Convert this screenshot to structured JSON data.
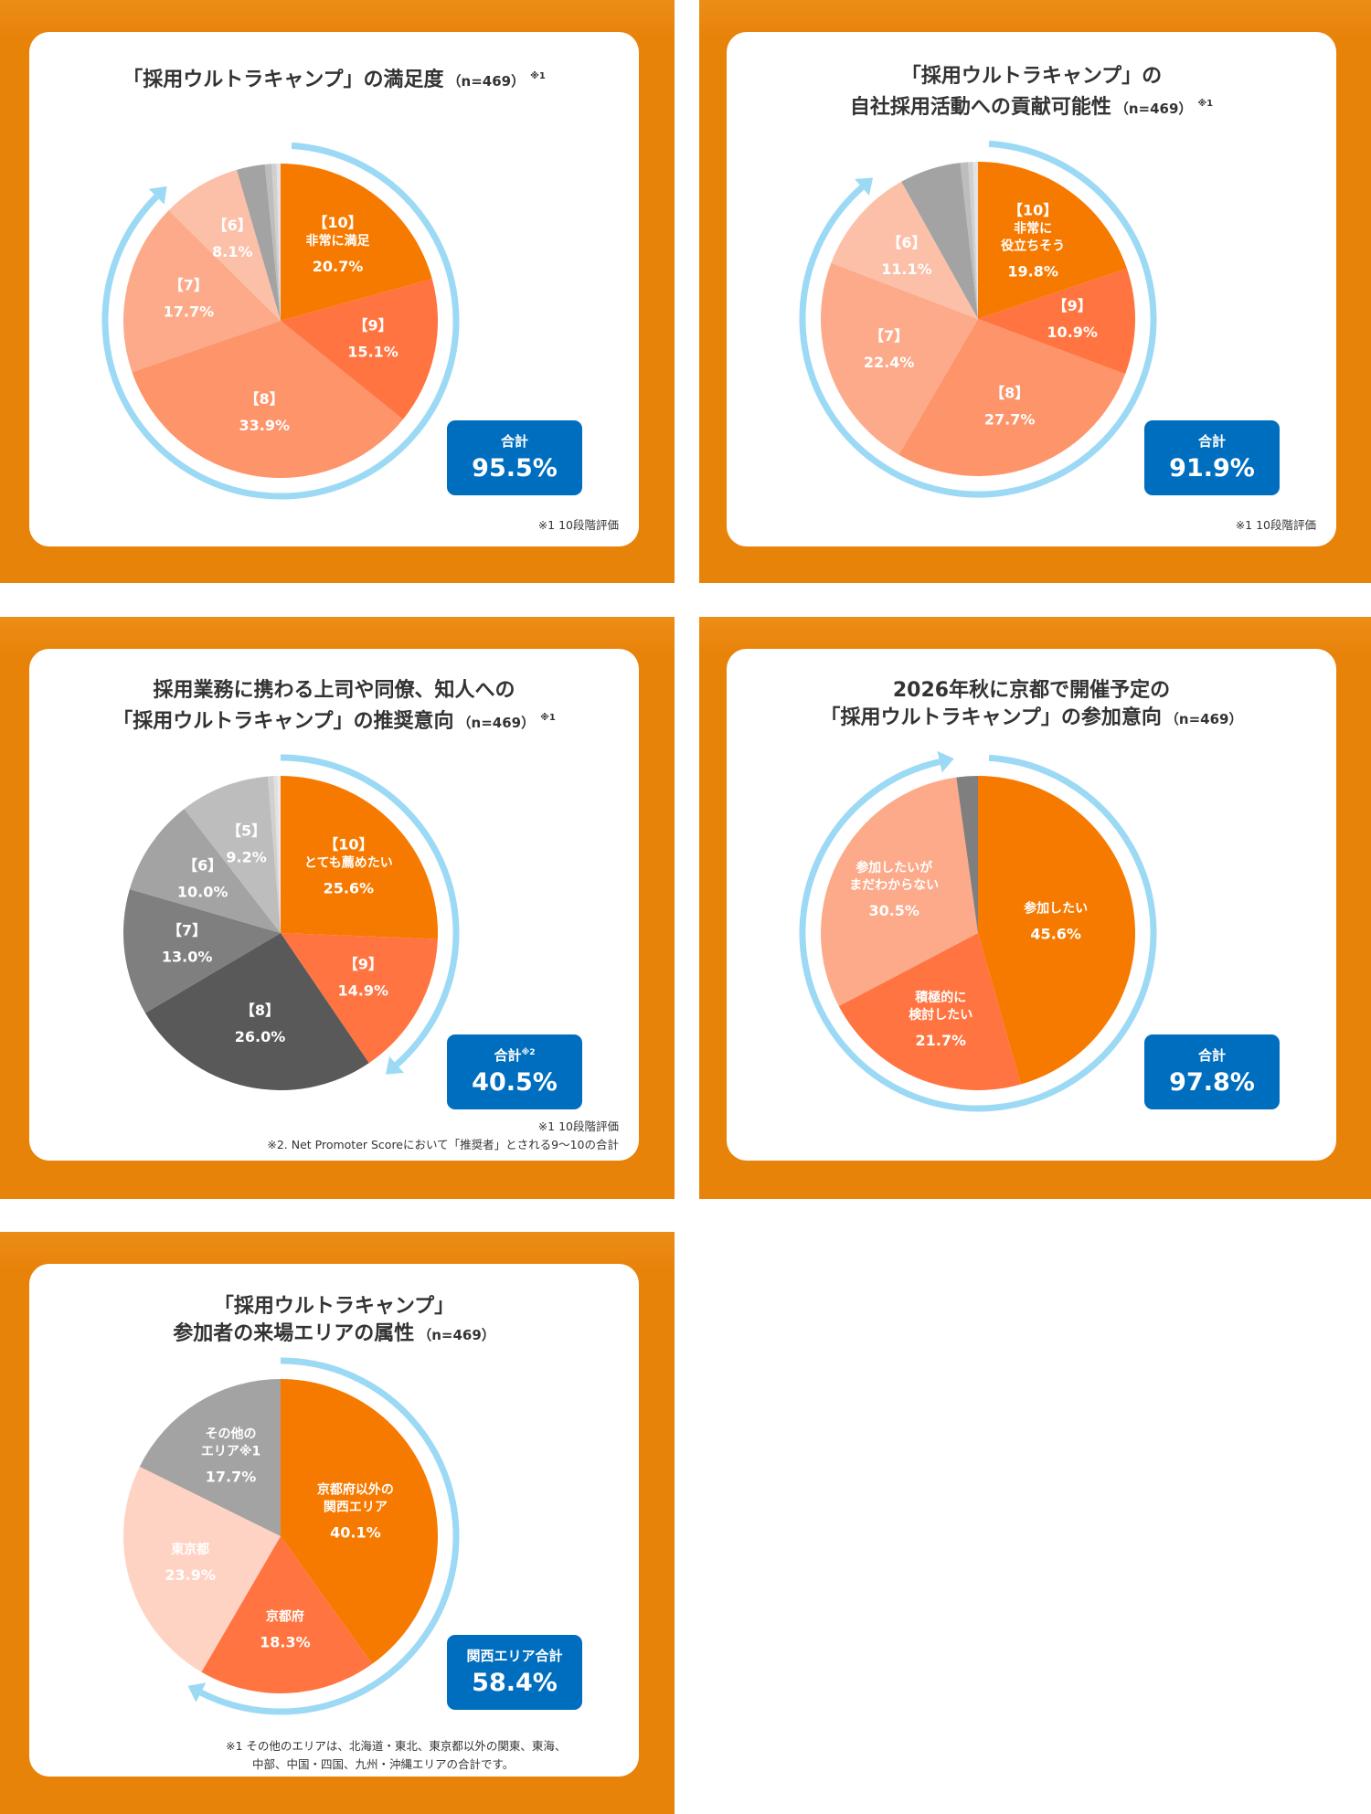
{
  "chart_data": [
    {
      "type": "pie",
      "title": {
        "lines": [
          "「採用ウルトラキャンプ」の満足度"
        ],
        "n": "（n=469）",
        "note": "※1"
      },
      "slices": [
        {
          "label": [
            "【10】",
            "非常に満足"
          ],
          "value": 20.7,
          "value_text": "20.7%",
          "color": "#f77a00"
        },
        {
          "label": [
            "【9】"
          ],
          "value": 15.1,
          "value_text": "15.1%",
          "color": "#ff7440"
        },
        {
          "label": [
            "【8】"
          ],
          "value": 33.9,
          "value_text": "33.9%",
          "color": "#fd946a"
        },
        {
          "label": [
            "【7】"
          ],
          "value": 17.7,
          "value_text": "17.7%",
          "color": "#fcaa8a"
        },
        {
          "label": [
            "【6】"
          ],
          "value": 8.1,
          "value_text": "8.1%",
          "color": "#fcc0a8"
        },
        {
          "label": [],
          "value": 2.9,
          "value_text": "",
          "color": "#a3a3a3"
        },
        {
          "label": [],
          "value": 0.7,
          "value_text": "",
          "color": "#bdbdbd"
        },
        {
          "label": [],
          "value": 0.5,
          "value_text": "",
          "color": "#d0d0d0"
        },
        {
          "label": [],
          "value": 0.4,
          "value_text": "",
          "color": "#e3e3e3"
        }
      ],
      "total": {
        "label": "合計",
        "sup": "",
        "value": "95.5%"
      },
      "footnotes": [
        "※1  10段階評価"
      ]
    },
    {
      "type": "pie",
      "title": {
        "lines": [
          "「採用ウルトラキャンプ」の",
          "自社採用活動への貢献可能性"
        ],
        "n": "（n=469）",
        "note": "※1"
      },
      "slices": [
        {
          "label": [
            "【10】",
            "非常に",
            "役立ちそう"
          ],
          "value": 19.8,
          "value_text": "19.8%",
          "color": "#f77a00"
        },
        {
          "label": [
            "【9】"
          ],
          "value": 10.9,
          "value_text": "10.9%",
          "color": "#ff7440"
        },
        {
          "label": [
            "【8】"
          ],
          "value": 27.7,
          "value_text": "27.7%",
          "color": "#fd946a"
        },
        {
          "label": [
            "【7】"
          ],
          "value": 22.4,
          "value_text": "22.4%",
          "color": "#fcaa8a"
        },
        {
          "label": [
            "【6】"
          ],
          "value": 11.1,
          "value_text": "11.1%",
          "color": "#fcc0a8"
        },
        {
          "label": [],
          "value": 6.3,
          "value_text": "",
          "color": "#a3a3a3"
        },
        {
          "label": [],
          "value": 0.8,
          "value_text": "",
          "color": "#bdbdbd"
        },
        {
          "label": [],
          "value": 0.5,
          "value_text": "",
          "color": "#d0d0d0"
        },
        {
          "label": [],
          "value": 0.5,
          "value_text": "",
          "color": "#e3e3e3"
        }
      ],
      "total": {
        "label": "合計",
        "sup": "",
        "value": "91.9%"
      },
      "footnotes": [
        "※1  10段階評価"
      ]
    },
    {
      "type": "pie",
      "title": {
        "lines": [
          "採用業務に携わる上司や同僚、知人への",
          "「採用ウルトラキャンプ」の推奨意向"
        ],
        "n": "（n=469）",
        "note": "※1"
      },
      "slices": [
        {
          "label": [
            "【10】",
            "とても薦めたい"
          ],
          "value": 25.6,
          "value_text": "25.6%",
          "color": "#f77a00"
        },
        {
          "label": [
            "【9】"
          ],
          "value": 14.9,
          "value_text": "14.9%",
          "color": "#ff7440"
        },
        {
          "label": [
            "【8】"
          ],
          "value": 26.0,
          "value_text": "26.0%",
          "color": "#595959"
        },
        {
          "label": [
            "【7】"
          ],
          "value": 13.0,
          "value_text": "13.0%",
          "color": "#7f7f7f"
        },
        {
          "label": [
            "【6】"
          ],
          "value": 10.0,
          "value_text": "10.0%",
          "color": "#a3a3a3"
        },
        {
          "label": [
            "【5】"
          ],
          "value": 9.2,
          "value_text": "9.2%",
          "color": "#bdbdbd"
        },
        {
          "label": [],
          "value": 0.6,
          "value_text": "",
          "color": "#d0d0d0"
        },
        {
          "label": [],
          "value": 0.4,
          "value_text": "",
          "color": "#e0e0e0"
        },
        {
          "label": [],
          "value": 0.3,
          "value_text": "",
          "color": "#ececec"
        }
      ],
      "total": {
        "label": "合計",
        "sup": "※2",
        "value": "40.5%"
      },
      "footnotes": [
        "※1  10段階評価",
        "※2. Net Promoter Scoreにおいて「推奨者」とされる9〜10の合計"
      ]
    },
    {
      "type": "pie",
      "title": {
        "lines": [
          "2026年秋に京都で開催予定の",
          "「採用ウルトラキャンプ」の参加意向"
        ],
        "n": "（n=469）",
        "note": ""
      },
      "slices": [
        {
          "label": [
            "参加したい"
          ],
          "value": 45.6,
          "value_text": "45.6%",
          "color": "#f77a00"
        },
        {
          "label": [
            "積極的に",
            "検討したい"
          ],
          "value": 21.7,
          "value_text": "21.7%",
          "color": "#ff7440"
        },
        {
          "label": [
            "参加したいが",
            "まだわからない"
          ],
          "value": 30.5,
          "value_text": "30.5%",
          "color": "#fcaa8a"
        },
        {
          "label": [],
          "value": 2.2,
          "value_text": "",
          "color": "#7f7f7f"
        }
      ],
      "total": {
        "label": "合計",
        "sup": "",
        "value": "97.8%"
      },
      "footnotes": []
    },
    {
      "type": "pie",
      "title": {
        "lines": [
          "「採用ウルトラキャンプ」",
          "参加者の来場エリアの属性"
        ],
        "n": "（n=469）",
        "note": ""
      },
      "slices": [
        {
          "label": [
            "京都府以外の",
            "関西エリア"
          ],
          "value": 40.1,
          "value_text": "40.1%",
          "color": "#f77a00"
        },
        {
          "label": [
            "京都府"
          ],
          "value": 18.3,
          "value_text": "18.3%",
          "color": "#ff7440"
        },
        {
          "label": [
            "東京都"
          ],
          "value": 23.9,
          "value_text": "23.9%",
          "color": "#ffd3c4"
        },
        {
          "label": [
            "その他の",
            "エリア※1"
          ],
          "value": 17.7,
          "value_text": "17.7%",
          "color": "#a3a3a3"
        }
      ],
      "total": {
        "label": "関西エリア合計",
        "sup": "",
        "value": "58.4%"
      },
      "footnotes": [
        "※1 その他のエリアは、北海道・東北、東京都以外の関東、東海、",
        "中部、中国・四国、九州・沖縄エリアの合計です。"
      ]
    }
  ],
  "colors": {
    "panel": "#e8830a",
    "ring": "#9bd9f5",
    "total_box": "#006ebf",
    "text": "#333333"
  }
}
